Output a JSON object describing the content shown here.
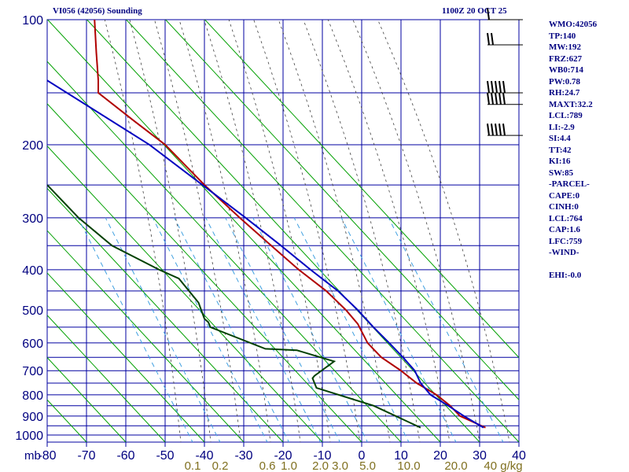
{
  "header": {
    "title": "VI056 (42056) Sounding",
    "time": "1100Z 20 OCT 25"
  },
  "indices": [
    "WMO:42056",
    "TP:140",
    "MW:192",
    "FRZ:627",
    "WB0:714",
    "PW:0.78",
    "RH:24.7",
    "MAXT:32.2",
    "LCL:789",
    "LI:-2.9",
    "SI:4.4",
    "TT:42",
    "KI:16",
    "SW:85",
    "-PARCEL-",
    "CAPE:0",
    "CINH:0",
    "LCL:764",
    "CAP:1.6",
    "LFC:759",
    "-WIND-",
    "",
    "EHI:-0.0"
  ],
  "colors": {
    "grid": "#0000a0",
    "isotherm": "#00a000",
    "temperature": "#b00000",
    "dewpoint": "#004000",
    "parcel": "#0000c0",
    "moist": "#404040",
    "mixing": "#40a0e0",
    "mixlabel": "#807020",
    "text": "#000080"
  },
  "chart_data": {
    "type": "line",
    "title": "VI056 (42056) Sounding",
    "subtitle": "1100Z 20 OCT 25",
    "y_unit_label": "mb",
    "pressure_ticks": [
      100,
      200,
      300,
      400,
      500,
      600,
      700,
      800,
      900,
      1000
    ],
    "pressure_lines": [
      100,
      150,
      200,
      250,
      300,
      350,
      400,
      450,
      500,
      550,
      600,
      650,
      700,
      750,
      800,
      850,
      900,
      950,
      1000
    ],
    "ylim": [
      1050,
      100
    ],
    "xlim": [
      -80,
      40
    ],
    "temperature_ticks": [
      -80,
      -70,
      -60,
      -50,
      -40,
      -30,
      -20,
      -10,
      0,
      10,
      20,
      30,
      40
    ],
    "mixing_ratio_label_unit": "g/kg",
    "mixing_ratio_labels": [
      {
        "text": "0.1",
        "t_surface": -43
      },
      {
        "text": "0.2",
        "t_surface": -36
      },
      {
        "text": "0.6",
        "t_surface": -24
      },
      {
        "text": "1.0",
        "t_surface": -18.5
      },
      {
        "text": "2.0",
        "t_surface": -10.5
      },
      {
        "text": "3.0",
        "t_surface": -5.5
      },
      {
        "text": "5.0",
        "t_surface": 1.5
      },
      {
        "text": "10.0",
        "t_surface": 12
      },
      {
        "text": "20.0",
        "t_surface": 24
      },
      {
        "text": "40 g/kg",
        "t_surface": 36
      }
    ],
    "series": [
      {
        "name": "Temperature",
        "p": [
          98,
          120,
          140,
          150,
          175,
          200,
          250,
          300,
          350,
          400,
          450,
          500,
          540,
          600,
          650,
          700,
          750,
          800,
          850,
          900,
          960
        ],
        "t_x": [
          -68,
          -67.5,
          -67,
          -67,
          -58,
          -50,
          -40,
          -31,
          -23,
          -16,
          -9,
          -4,
          -1,
          1.5,
          5,
          10,
          14,
          19,
          22.5,
          25,
          31.5
        ]
      },
      {
        "name": "Dewpoint",
        "p": [
          250,
          300,
          350,
          400,
          420,
          480,
          525,
          535,
          550,
          620,
          625,
          650,
          665,
          720,
          730,
          770,
          850,
          960
        ],
        "t_x": [
          -80,
          -72,
          -63.5,
          -51.5,
          -46.5,
          -41.5,
          -40,
          -39,
          -38.5,
          -24.5,
          -16.5,
          -10.5,
          -7,
          -12,
          -12.5,
          -11.5,
          3,
          15
        ]
      },
      {
        "name": "Parcel",
        "p": [
          140,
          200,
          250,
          300,
          350,
          400,
          450,
          500,
          550,
          600,
          650,
          700,
          750,
          800,
          850,
          900,
          960
        ],
        "t_x": [
          -80,
          -54,
          -40.5,
          -29.5,
          -20.5,
          -13,
          -6,
          -1,
          3,
          7,
          10.5,
          13.5,
          15,
          17.5,
          22,
          26,
          31
        ]
      }
    ],
    "wind_barbs": [
      {
        "p": 100,
        "speed_kt": 10
      },
      {
        "p": 115,
        "speed_kt": 15
      },
      {
        "p": 150,
        "speed_kt": 45
      },
      {
        "p": 160,
        "speed_kt": 45
      },
      {
        "p": 190,
        "speed_kt": 45
      }
    ]
  }
}
